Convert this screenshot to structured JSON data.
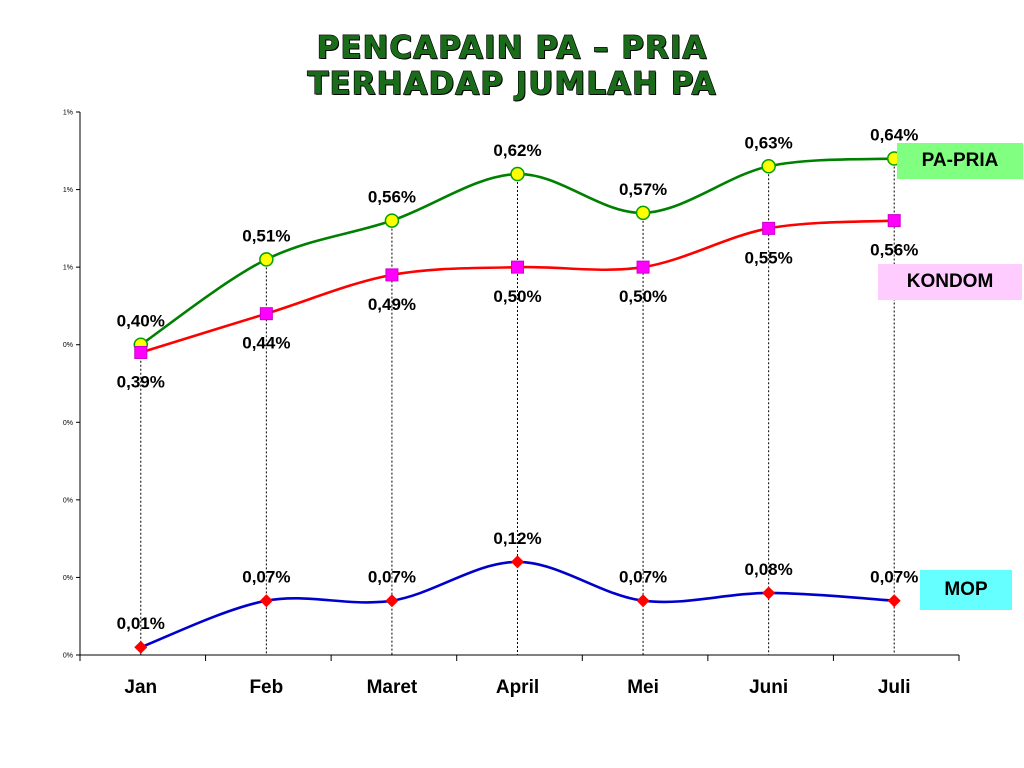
{
  "title_lines": [
    "PENCAPAIN PA – PRIA",
    "TERHADAP JUMLAH PA"
  ],
  "legend": {
    "pa_pria": {
      "label": "PA-PRIA",
      "color": "#80ff80"
    },
    "kondom": {
      "label": "KONDOM",
      "color": "#ffccff"
    },
    "mop": {
      "label": "MOP",
      "color": "#66ffff"
    }
  },
  "chart_data": {
    "type": "line",
    "title": "PENCAPAIN PA – PRIA TERHADAP JUMLAH PA",
    "categories": [
      "Jan",
      "Feb",
      "Maret",
      "April",
      "Mei",
      "Juni",
      "Juli"
    ],
    "y_tick_labels": [
      "0%",
      "0%",
      "0%",
      "0%",
      "0%",
      "1%",
      "1%",
      "1%"
    ],
    "ylim": [
      0,
      0.7
    ],
    "grid": false,
    "series": [
      {
        "name": "PA-PRIA",
        "values": [
          0.4,
          0.51,
          0.56,
          0.62,
          0.57,
          0.63,
          0.64
        ],
        "labels": [
          "0,40%",
          "0,51%",
          "0,56%",
          "0,62%",
          "0,57%",
          "0,63%",
          "0,64%"
        ],
        "color": "#008000",
        "marker_color": "#ffff00"
      },
      {
        "name": "KONDOM",
        "values": [
          0.39,
          0.44,
          0.49,
          0.5,
          0.5,
          0.55,
          0.56
        ],
        "labels": [
          "0,39%",
          "0,44%",
          "0,49%",
          "0,50%",
          "0,50%",
          "0,55%",
          "0,56%"
        ],
        "color": "#ff0000",
        "marker_color": "#ff00ff"
      },
      {
        "name": "MOP",
        "values": [
          0.01,
          0.07,
          0.07,
          0.12,
          0.07,
          0.08,
          0.07
        ],
        "labels": [
          "0,01%",
          "0,07%",
          "0,07%",
          "0,12%",
          "0,07%",
          "0,08%",
          "0,07%"
        ],
        "color": "#0000cc",
        "marker_color": "#ff0000"
      }
    ]
  }
}
